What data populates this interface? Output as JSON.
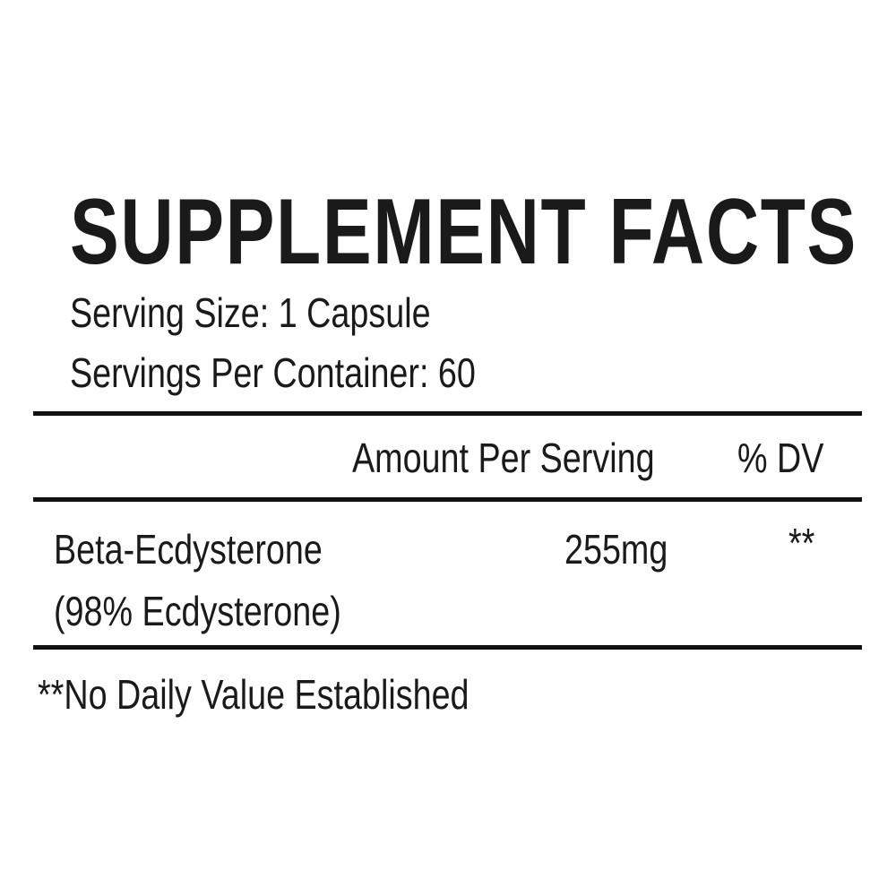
{
  "title": "SUPPLEMENT FACTS",
  "serving_size": "Serving Size: 1 Capsule",
  "servings_per_container": "Servings Per Container: 60",
  "header": {
    "amount": "Amount Per Serving",
    "dv": "% DV"
  },
  "ingredients": [
    {
      "name": "Beta-Ecdysterone",
      "detail": "(98% Ecdysterone)",
      "amount": "255mg",
      "dv": "**"
    }
  ],
  "footnote": "**No Daily Value Established"
}
